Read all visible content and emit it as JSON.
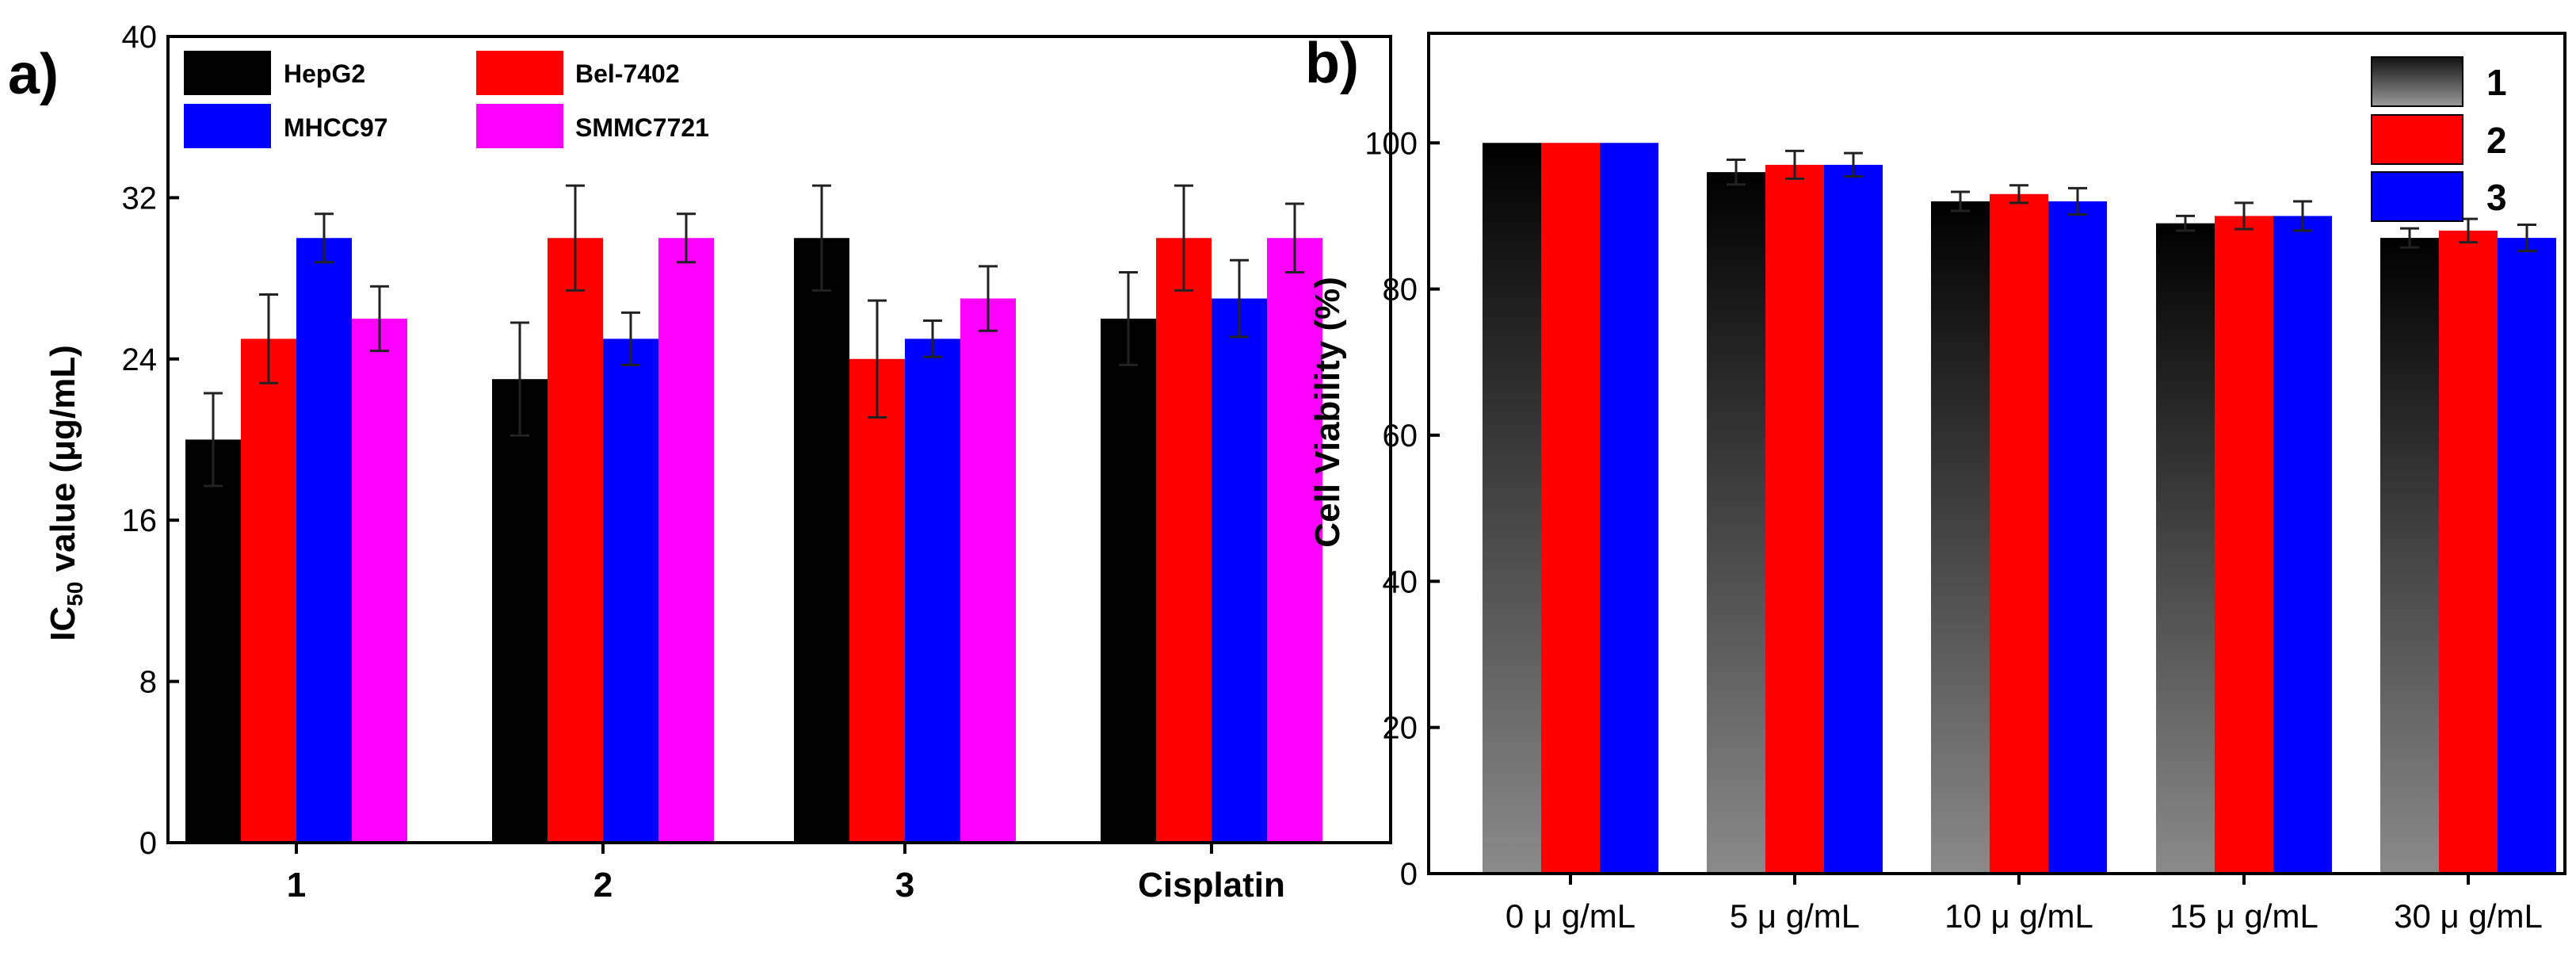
{
  "chart_data": [
    {
      "panel": "a)",
      "type": "bar",
      "ylabel_main": "IC",
      "ylabel_sub": "50",
      "ylabel_rest": " value (μg/mL)",
      "xlabel": "",
      "ylim": [
        0,
        40
      ],
      "yticks": [
        "0",
        "8",
        "16",
        "24",
        "32",
        "40"
      ],
      "categories": [
        "1",
        "2",
        "3",
        "Cisplatin"
      ],
      "series": [
        {
          "name": "HepG2",
          "color": "#000000",
          "values": [
            20,
            23,
            30,
            26
          ],
          "errors": [
            2.3,
            2.8,
            2.6,
            2.3
          ]
        },
        {
          "name": "Bel-7402",
          "color": "#ff0000",
          "values": [
            25,
            30,
            24,
            30
          ],
          "errors": [
            2.2,
            2.6,
            2.9,
            2.6
          ]
        },
        {
          "name": "MHCC97",
          "color": "#0000ff",
          "values": [
            30,
            25,
            25,
            27
          ],
          "errors": [
            1.2,
            1.3,
            0.9,
            1.9
          ]
        },
        {
          "name": "SMMC7721",
          "color": "#ff00ff",
          "values": [
            26,
            30,
            27,
            30
          ],
          "errors": [
            1.6,
            1.2,
            1.6,
            1.7
          ]
        }
      ],
      "legend_position": "top-left"
    },
    {
      "panel": "b)",
      "type": "bar",
      "ylabel": "Cell Viability (%)",
      "xlabel": "",
      "ylim": [
        0,
        115
      ],
      "yticks": [
        "0",
        "20",
        "40",
        "60",
        "80",
        "100"
      ],
      "categories": [
        "0 μ g/mL",
        "5 μ g/mL",
        "10 μ g/mL",
        "15 μ g/mL",
        "30 μ g/mL"
      ],
      "series": [
        {
          "name": "1",
          "color": "#000000",
          "values": [
            100,
            96,
            92,
            89,
            87
          ],
          "errors": [
            0,
            1.7,
            1.3,
            1.0,
            1.3
          ]
        },
        {
          "name": "2",
          "color": "#ff0000",
          "values": [
            100,
            97,
            93,
            90,
            88
          ],
          "errors": [
            0,
            1.9,
            1.2,
            1.8,
            1.6
          ]
        },
        {
          "name": "3",
          "color": "#0000ff",
          "values": [
            100,
            97,
            92,
            90,
            87
          ],
          "errors": [
            0,
            1.6,
            1.8,
            2.0,
            1.8
          ]
        }
      ],
      "legend_position": "top-right"
    }
  ]
}
